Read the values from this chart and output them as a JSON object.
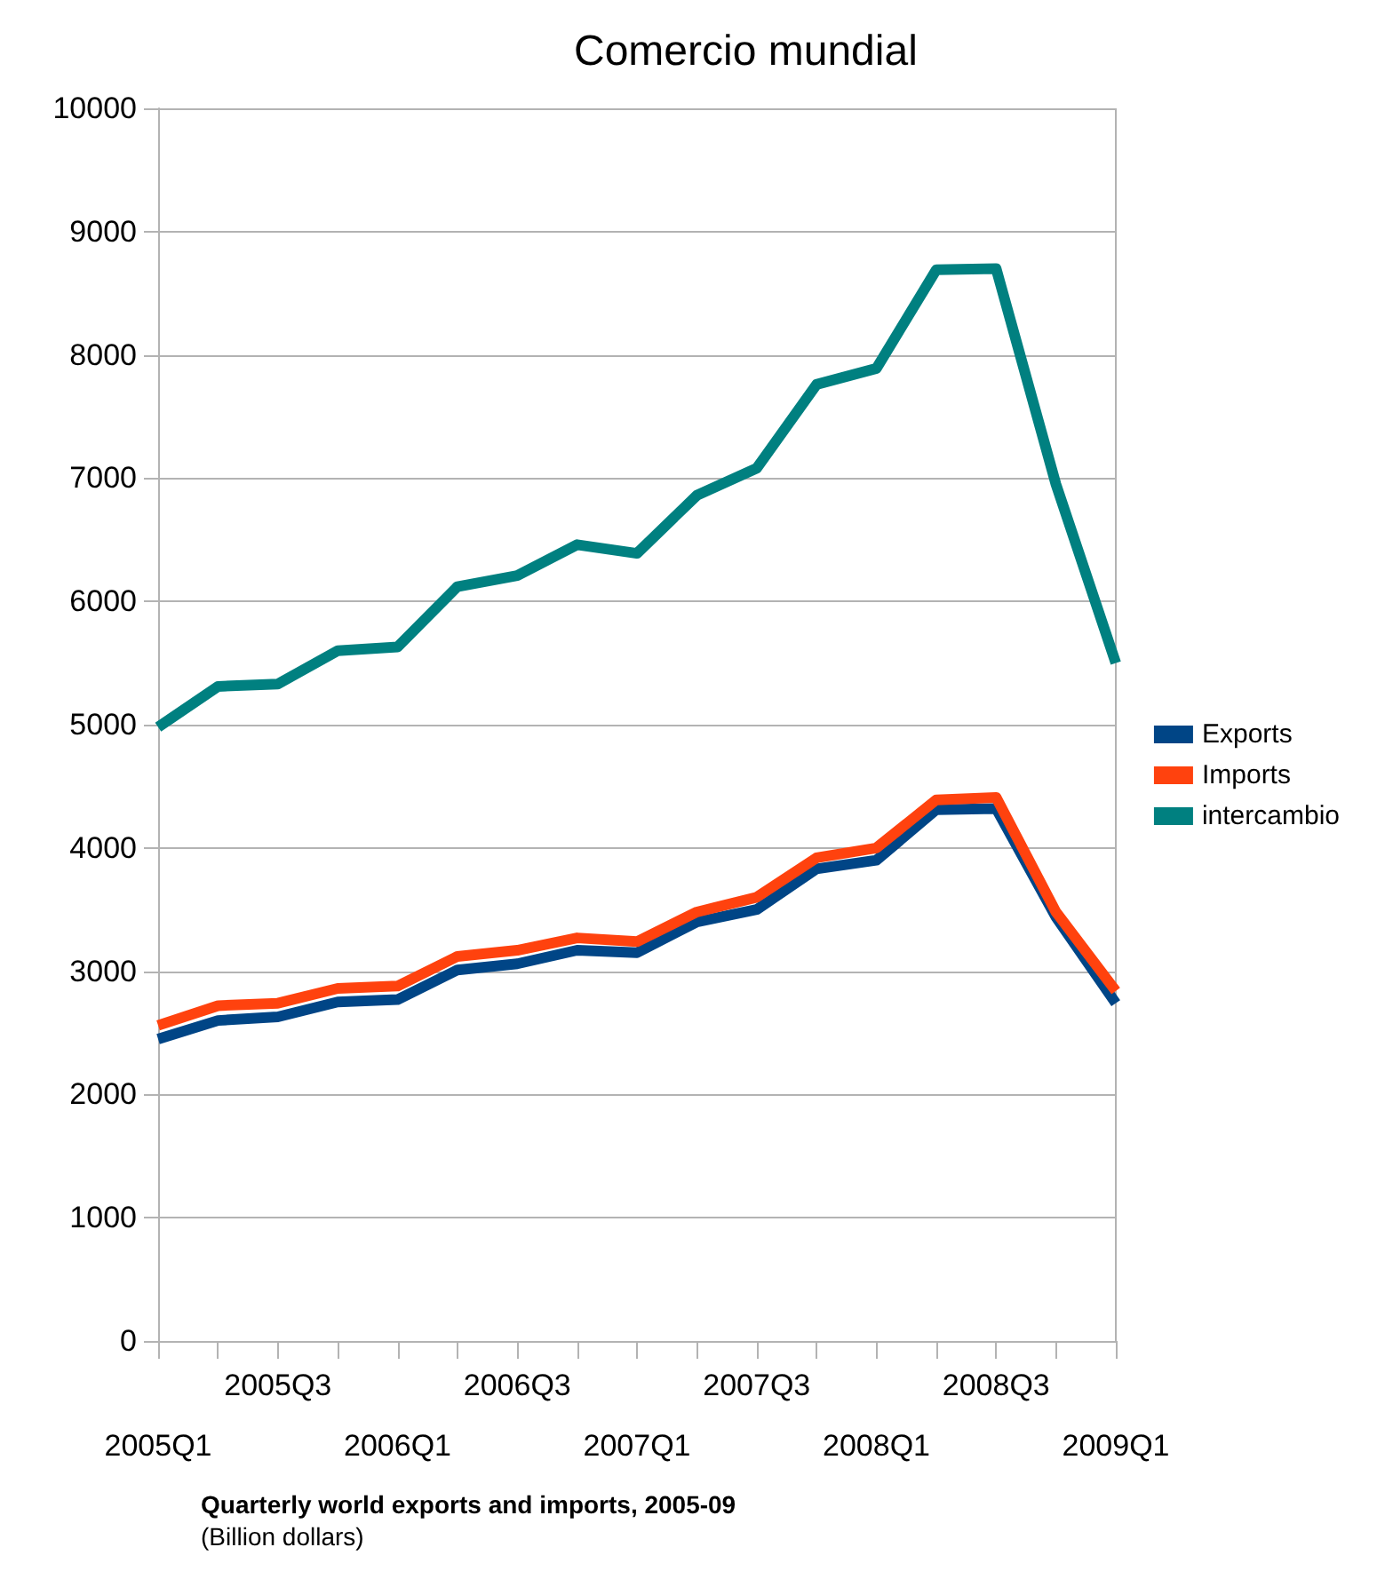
{
  "chart_data": {
    "type": "line",
    "title": "Comercio mundial",
    "categories": [
      "2005Q1",
      null,
      "2005Q3",
      null,
      "2006Q1",
      null,
      "2006Q3",
      null,
      "2007Q1",
      null,
      "2007Q3",
      null,
      "2008Q1",
      null,
      "2008Q3",
      null,
      "2009Q1"
    ],
    "series": [
      {
        "name": "Exports",
        "color": "#004586",
        "values": [
          2450,
          2600,
          2630,
          2750,
          2770,
          3010,
          3060,
          3170,
          3150,
          3400,
          3500,
          3830,
          3900,
          4310,
          4320,
          3440,
          2740
        ]
      },
      {
        "name": "Imports",
        "color": "#ff420e",
        "values": [
          2560,
          2720,
          2740,
          2860,
          2880,
          3120,
          3170,
          3270,
          3240,
          3480,
          3600,
          3920,
          4000,
          4390,
          4410,
          3480,
          2840
        ]
      },
      {
        "name": "intercambio",
        "color": "#008080",
        "values": [
          4980,
          5310,
          5330,
          5600,
          5630,
          6120,
          6210,
          6460,
          6390,
          6860,
          7080,
          7760,
          7890,
          8690,
          8700,
          6950,
          5500
        ]
      }
    ],
    "ylim": [
      0,
      10000
    ],
    "yticks": [
      0,
      1000,
      2000,
      3000,
      4000,
      5000,
      6000,
      7000,
      8000,
      9000,
      10000
    ],
    "grid": "y",
    "legend": "right",
    "marker": "none",
    "line_style": "solid",
    "annotations": [
      "Quarterly world exports and imports, 2005-09",
      "(Billion dollars)"
    ]
  }
}
